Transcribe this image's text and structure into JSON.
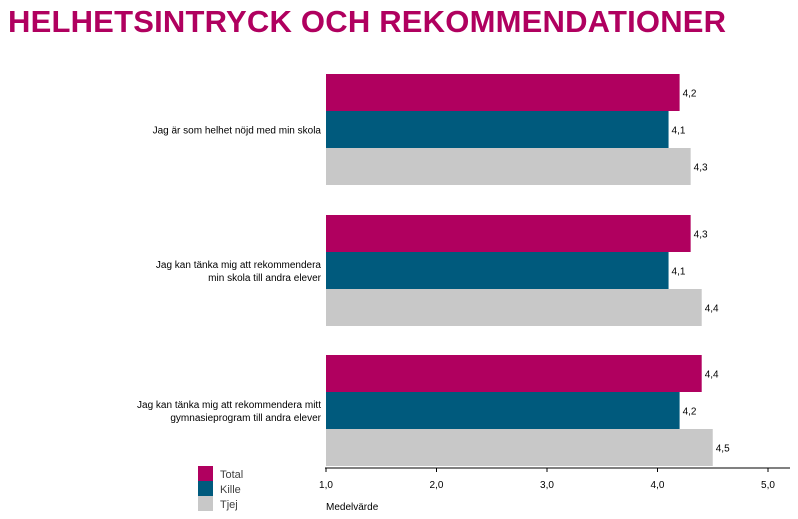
{
  "title": "HELHETSINTRYCK OCH REKOMMENDATIONER",
  "chart_data": {
    "type": "bar",
    "orientation": "horizontal",
    "categories": [
      [
        "Jag är som helhet nöjd med min skola"
      ],
      [
        "Jag kan tänka mig att rekommendera",
        "min skola till andra elever"
      ],
      [
        "Jag kan tänka mig att rekommendera mitt",
        "gymnasieprogram till andra elever"
      ]
    ],
    "series": [
      {
        "name": "Total",
        "color": "#b0005f",
        "values": [
          4.2,
          4.3,
          4.4
        ],
        "labels": [
          "4,2",
          "4,3",
          "4,4"
        ]
      },
      {
        "name": "Kille",
        "color": "#005a7d",
        "values": [
          4.1,
          4.1,
          4.2
        ],
        "labels": [
          "4,1",
          "4,1",
          "4,2"
        ]
      },
      {
        "name": "Tjej",
        "color": "#c8c8c8",
        "values": [
          4.3,
          4.4,
          4.5
        ],
        "labels": [
          "4,3",
          "4,4",
          "4,5"
        ]
      }
    ],
    "xlim": [
      1.0,
      5.0
    ],
    "xticks": [
      1.0,
      2.0,
      3.0,
      4.0,
      5.0
    ],
    "xtick_labels": [
      "1,0",
      "2,0",
      "3,0",
      "4,0",
      "5,0"
    ],
    "xlabel": "Medelvärde",
    "legend_position": "bottom-left",
    "grid": false
  }
}
